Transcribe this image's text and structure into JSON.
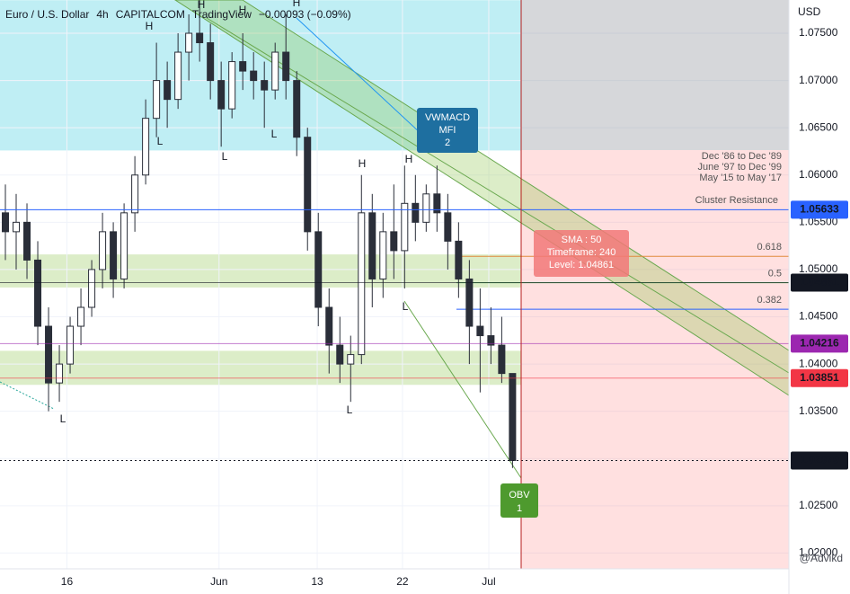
{
  "chart_data": {
    "type": "candlestick",
    "title": "Euro / U.S. Dollar",
    "interval": "4h",
    "source": "CAPITALCOM",
    "platform": "TradingView",
    "change": "−0.00093 (−0.09%)",
    "currency": "USD",
    "watermark": "@Advikd",
    "color": "#2a2e39",
    "open": [
      1.056,
      1.054,
      1.055,
      1.051,
      1.044,
      1.038,
      1.04,
      1.044,
      1.046,
      1.05,
      1.054,
      1.049,
      1.056,
      1.06,
      1.066,
      1.07,
      1.068,
      1.073,
      1.075,
      1.074,
      1.07,
      1.067,
      1.072,
      1.071,
      1.07,
      1.069,
      1.073,
      1.07,
      1.064,
      1.054,
      1.046,
      1.042,
      1.04,
      1.041,
      1.056,
      1.049,
      1.054,
      1.052,
      1.057,
      1.055,
      1.058,
      1.056,
      1.053,
      1.049,
      1.044,
      1.043,
      1.042,
      1.039
    ],
    "high": [
      1.059,
      1.058,
      1.057,
      1.053,
      1.046,
      1.042,
      1.045,
      1.048,
      1.051,
      1.056,
      1.055,
      1.057,
      1.062,
      1.068,
      1.074,
      1.072,
      1.075,
      1.077,
      1.0785,
      1.076,
      1.072,
      1.073,
      1.075,
      1.073,
      1.072,
      1.074,
      1.077,
      1.071,
      1.065,
      1.056,
      1.048,
      1.045,
      1.043,
      1.06,
      1.058,
      1.056,
      1.059,
      1.061,
      1.06,
      1.059,
      1.061,
      1.058,
      1.055,
      1.051,
      1.048,
      1.046,
      1.045,
      1.039
    ],
    "low": [
      1.051,
      1.05,
      1.049,
      1.042,
      1.035,
      1.036,
      1.039,
      1.042,
      1.045,
      1.048,
      1.047,
      1.048,
      1.054,
      1.059,
      1.064,
      1.065,
      1.067,
      1.07,
      1.072,
      1.068,
      1.063,
      1.066,
      1.069,
      1.068,
      1.065,
      1.068,
      1.068,
      1.062,
      1.052,
      1.044,
      1.039,
      1.038,
      1.036,
      1.04,
      1.046,
      1.047,
      1.049,
      1.048,
      1.053,
      1.054,
      1.054,
      1.05,
      1.047,
      1.04,
      1.037,
      1.04,
      1.038,
      1.029
    ],
    "close": [
      1.054,
      1.055,
      1.051,
      1.044,
      1.038,
      1.04,
      1.044,
      1.046,
      1.05,
      1.054,
      1.049,
      1.056,
      1.06,
      1.066,
      1.07,
      1.068,
      1.073,
      1.075,
      1.074,
      1.07,
      1.067,
      1.072,
      1.071,
      1.07,
      1.069,
      1.073,
      1.07,
      1.064,
      1.054,
      1.046,
      1.042,
      1.04,
      1.041,
      1.056,
      1.049,
      1.054,
      1.052,
      1.057,
      1.055,
      1.058,
      1.056,
      1.053,
      1.049,
      1.044,
      1.043,
      1.042,
      1.039,
      1.02979
    ],
    "xlim": [
      -0.5,
      47.8
    ],
    "xticks": [
      {
        "value": 5.7,
        "label": "16"
      },
      {
        "value": 19.8,
        "label": "Jun"
      },
      {
        "value": 28.9,
        "label": "13"
      },
      {
        "value": 36.8,
        "label": "22"
      },
      {
        "value": 44.8,
        "label": "Jul"
      }
    ],
    "ylim": [
      1.01833,
      1.07852
    ],
    "yticks": [
      {
        "value": 1.075,
        "label": "1.07500"
      },
      {
        "value": 1.07,
        "label": "1.07000"
      },
      {
        "value": 1.065,
        "label": "1.06500"
      },
      {
        "value": 1.06,
        "label": "1.06000"
      },
      {
        "value": 1.055,
        "label": "1.05500"
      },
      {
        "value": 1.05,
        "label": "1.05000"
      },
      {
        "value": 1.045,
        "label": "1.04500"
      },
      {
        "value": 1.04,
        "label": "1.04000"
      },
      {
        "value": 1.035,
        "label": "1.03500"
      },
      {
        "value": 1.03,
        "label": "1.03000"
      },
      {
        "value": 1.025,
        "label": "1.02500"
      },
      {
        "value": 1.02,
        "label": "1.02000"
      }
    ],
    "price_tags": [
      {
        "value": 1.05633,
        "color": "#2962ff"
      },
      {
        "value": 1.04861,
        "color": "#131722"
      },
      {
        "value": 1.04216,
        "color": "#9c27b0"
      },
      {
        "value": 1.03851,
        "color": "#f23645"
      },
      {
        "value": 1.02979,
        "color": "#131722"
      }
    ],
    "zones": [
      {
        "top": 1.0785,
        "bottom": 1.0626,
        "color": "rgba(0,188,212,0.25)"
      },
      {
        "top": 1.0516,
        "bottom": 1.0481,
        "color": "rgba(139,195,74,0.3)"
      },
      {
        "top": 1.0414,
        "bottom": 1.0378,
        "color": "rgba(139,195,74,0.3)"
      }
    ],
    "fib_levels": [
      {
        "value": 1.0514,
        "label": "0.618",
        "color": "#e08a3c"
      },
      {
        "value": 1.0486,
        "label": "0.5",
        "color": "#4caf50"
      },
      {
        "value": 1.0458,
        "label": "0.382",
        "color": "#2962ff"
      }
    ],
    "notes": [
      "Dec '86 to Dec '89",
      "June '97 to Dec '99",
      "May '15 to May '17"
    ],
    "resistance_label": "Cluster Resistance",
    "pivot_labels": [
      "H",
      "H",
      "H",
      "H",
      "L",
      "L",
      "L",
      "L",
      "L",
      "L",
      "H",
      "H"
    ],
    "callouts": {
      "vwmacd": [
        "VWMACD",
        "MFI",
        "2"
      ],
      "sma": [
        "SMA : 50",
        "Timeframe: 240",
        "Level: 1.04861"
      ],
      "obv": [
        "OBV",
        "1"
      ]
    }
  }
}
